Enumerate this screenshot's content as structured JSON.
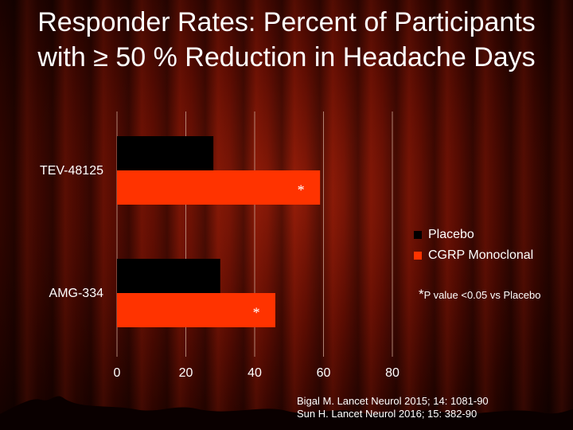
{
  "slide": {
    "title": "Responder Rates: Percent of Participants with ≥ 50 % Reduction in Headache Days"
  },
  "chart_data": {
    "type": "bar",
    "orientation": "horizontal",
    "categories": [
      "TEV-48125",
      "AMG-334"
    ],
    "series": [
      {
        "name": "Placebo",
        "color": "#000000",
        "values": [
          28,
          30
        ]
      },
      {
        "name": "CGRP Monoclonal",
        "color": "#ff3300",
        "values": [
          59,
          46
        ]
      }
    ],
    "xlim": [
      0,
      80
    ],
    "xticks": [
      0,
      20,
      40,
      60,
      80
    ],
    "grid": true,
    "legend": "right",
    "significance_marker": "*"
  },
  "footnote": {
    "star": "*",
    "text": "P value <0.05 vs Placebo"
  },
  "references": [
    "Bigal M. Lancet Neurol 2015; 14: 1081-90",
    "Sun H. Lancet Neurol 2016; 15: 382-90"
  ],
  "colors": {
    "background": "#5a0c02",
    "text": "#ffffff",
    "gridline": "#c8a090"
  }
}
